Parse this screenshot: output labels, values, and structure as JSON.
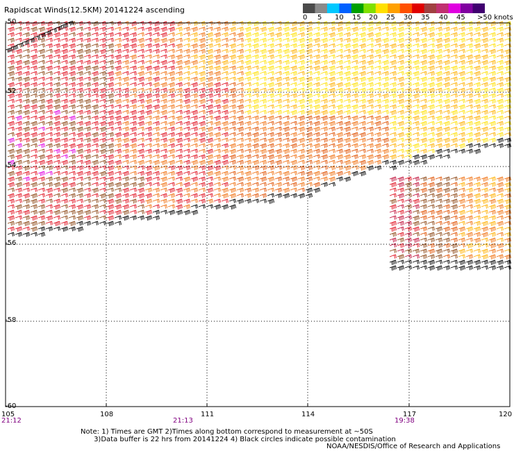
{
  "header": {
    "title": "Rapidscat Winds(12.5KM) 20141224 ascending"
  },
  "legend": {
    "colors": [
      "#4a4a4a",
      "#8a8a8a",
      "#00c8ff",
      "#0060ff",
      "#00a000",
      "#80e000",
      "#ffe000",
      "#ffa000",
      "#ff5000",
      "#e00000",
      "#a04040",
      "#c03070",
      "#e000e0",
      "#8000a0",
      "#400070"
    ],
    "labels": [
      "0",
      "5",
      "10",
      "15",
      "20",
      "25",
      "30",
      "35",
      "40",
      "45",
      ">50 knots"
    ]
  },
  "axes": {
    "x_ticks": [
      "105",
      "108",
      "111",
      "114",
      "117",
      "120"
    ],
    "y_ticks": [
      "-50",
      "-52",
      "-54",
      "-56",
      "-58",
      "-60"
    ],
    "times": [
      "21:12",
      "21:13",
      "19:38"
    ]
  },
  "wind_colors": {
    "black": "#000000",
    "brown": "#8b4513",
    "red": "#e01020",
    "crimson": "#c0103a",
    "orange": "#f07010",
    "darkorange": "#e05000",
    "yellow": "#ffe000",
    "gold": "#ffb000",
    "magenta": "#e000e0"
  },
  "notes": {
    "line1": "Note: 1) Times are GMT 2)Times along bottom correspond to measurement at ~50S",
    "line2": "      3)Data buffer is 22 hrs from 20141224 4) Black circles indicate possible contamination"
  },
  "credit": "NOAA/NESDIS/Office of Research and Applications"
}
